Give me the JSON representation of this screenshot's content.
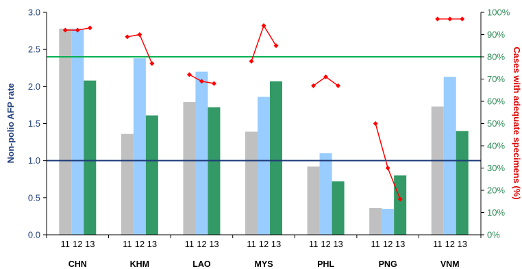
{
  "chart_data": {
    "type": "bar",
    "categories": [
      "CHN",
      "KHM",
      "LAO",
      "MYS",
      "PHL",
      "PNG",
      "VNM"
    ],
    "year_labels": [
      "11",
      "12",
      "13"
    ],
    "series": [
      {
        "name": "11",
        "color": "#c0c0c0",
        "values": [
          2.78,
          1.36,
          1.79,
          1.39,
          0.92,
          0.36,
          1.73
        ]
      },
      {
        "name": "12",
        "color": "#99ccff",
        "values": [
          2.78,
          2.38,
          2.2,
          1.86,
          1.1,
          0.35,
          2.13
        ]
      },
      {
        "name": "13",
        "color": "#339966",
        "values": [
          2.08,
          1.61,
          1.72,
          2.07,
          0.72,
          0.8,
          1.4
        ]
      }
    ],
    "adequate_specimens_pct": [
      [
        92,
        92,
        93
      ],
      [
        89,
        90,
        77
      ],
      [
        72,
        69,
        68
      ],
      [
        78,
        94,
        85
      ],
      [
        67,
        71,
        67
      ],
      [
        50,
        30,
        16
      ],
      [
        97,
        97,
        97
      ]
    ],
    "marker_color": "#ff0000",
    "ylabel": "Non-polio AFP rate",
    "ylabel_right": "Cases with adequate specimens (%)",
    "ylim": [
      0,
      3.0
    ],
    "yticks": [
      "0.0",
      "0.5",
      "1.0",
      "1.5",
      "2.0",
      "2.5",
      "3.0"
    ],
    "ylim_right": [
      0,
      100
    ],
    "yticks_right": [
      "0%",
      "10%",
      "20%",
      "30%",
      "40%",
      "50%",
      "60%",
      "70%",
      "80%",
      "90%",
      "100%"
    ],
    "reference_line_rate": 1.0,
    "reference_line_rate_color": "#1f3d7a",
    "reference_line_pct": 80,
    "reference_line_pct_color": "#00b050",
    "grid": false
  }
}
